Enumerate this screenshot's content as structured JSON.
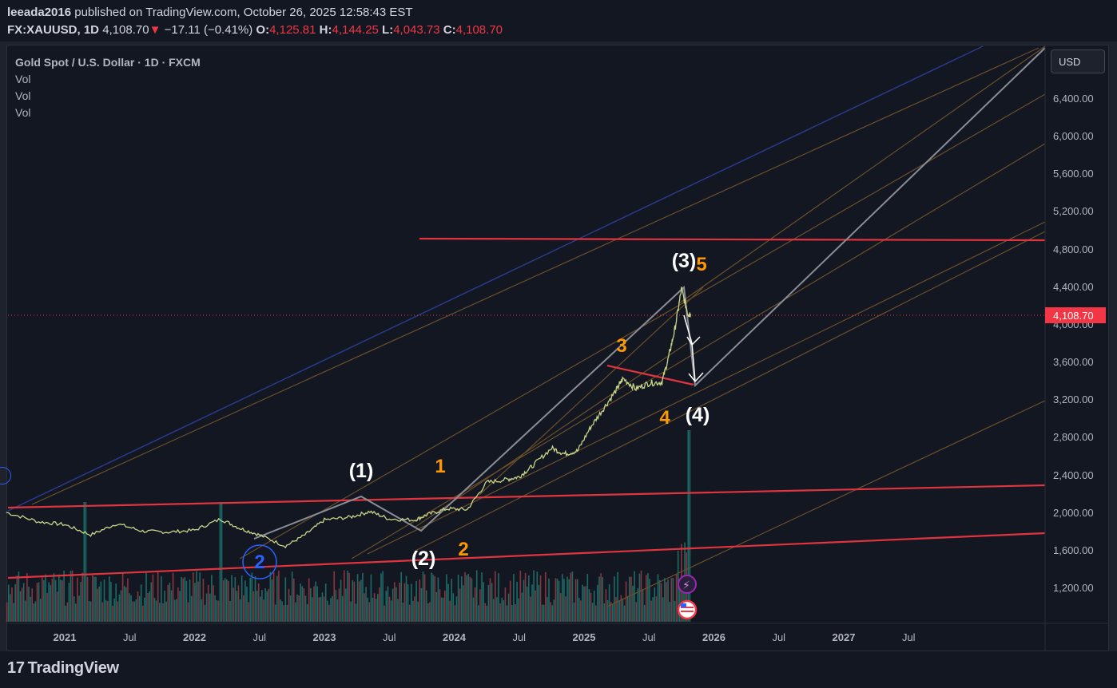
{
  "header": {
    "publisher": "leeada2016",
    "published_text": "published on TradingView.com, October 26, 2025 12:58:43 EST",
    "symbol": "FX:XAUUSD, 1D",
    "last": "4,108.70",
    "change_arrow": "▼",
    "change": "−17.11 (−0.41%)",
    "o_label": "O:",
    "o": "4,125.81",
    "h_label": "H:",
    "h": "4,144.25",
    "l_label": "L:",
    "l": "4,043.73",
    "c_label": "C:",
    "c": "4,108.70"
  },
  "legend": {
    "title": "Gold Spot / U.S. Dollar · 1D · FXCM",
    "vol1": "Vol",
    "vol2": "Vol",
    "vol3": "Vol"
  },
  "price_scale": {
    "currency": "USD",
    "current_price": "4,108.70"
  },
  "footer": {
    "logo_mark": "17",
    "logo_text": "TradingView"
  },
  "colors": {
    "background": "#131722",
    "down": "#f23645",
    "support_line": "#e0343f",
    "fan_line": "#7a5a2e",
    "channel_blue": "#2a3a8a",
    "wave_orange": "#ff9800",
    "wave_white": "#ffffff",
    "volume_up": "#26a69a",
    "volume_down": "#ef5350"
  },
  "chart_data": {
    "type": "line",
    "title": "Gold Spot / U.S. Dollar · 1D · FXCM",
    "xlabel": "",
    "ylabel": "USD",
    "ylim": [
      800,
      6800
    ],
    "x_ticks": [
      "2021",
      "Jul",
      "2022",
      "Jul",
      "2023",
      "Jul",
      "2024",
      "Jul",
      "2025",
      "Jul",
      "2026",
      "Jul",
      "2027",
      "Jul"
    ],
    "y_ticks": [
      "1,200.00",
      "1,600.00",
      "2,000.00",
      "2,400.00",
      "2,800.00",
      "3,200.00",
      "3,600.00",
      "4,000.00",
      "4,400.00",
      "4,800.00",
      "5,200.00",
      "5,600.00",
      "6,000.00",
      "6,400.00"
    ],
    "y_tick_values": [
      1200,
      1600,
      2000,
      2400,
      2800,
      3200,
      3600,
      4000,
      4400,
      4800,
      5200,
      5600,
      6000,
      6400
    ],
    "series": [
      {
        "name": "XAUUSD close",
        "t": [
          2020.55,
          2020.8,
          2021.0,
          2021.2,
          2021.4,
          2021.6,
          2021.8,
          2022.0,
          2022.2,
          2022.35,
          2022.5,
          2022.7,
          2022.85,
          2023.0,
          2023.2,
          2023.35,
          2023.5,
          2023.7,
          2023.8,
          2023.95,
          2024.1,
          2024.25,
          2024.4,
          2024.5,
          2024.6,
          2024.75,
          2024.85,
          2024.95,
          2025.05,
          2025.15,
          2025.25,
          2025.3,
          2025.4,
          2025.5,
          2025.6,
          2025.65,
          2025.7,
          2025.75,
          2025.8,
          2025.82
        ],
        "values": [
          2000,
          1900,
          1870,
          1760,
          1880,
          1800,
          1790,
          1810,
          1930,
          1830,
          1760,
          1640,
          1760,
          1920,
          1950,
          2010,
          1930,
          1920,
          1980,
          2040,
          2030,
          2320,
          2350,
          2380,
          2490,
          2680,
          2620,
          2650,
          2900,
          3100,
          3300,
          3420,
          3310,
          3370,
          3380,
          3640,
          3950,
          4370,
          4110,
          4108.7
        ]
      }
    ],
    "volume": {
      "start": 2020.55,
      "end": 2025.82,
      "spike_at": [
        2021.15,
        2022.2,
        2025.8
      ],
      "max_relative": 1.0
    },
    "wave_labels": [
      {
        "text": "(1)",
        "color": "white"
      },
      {
        "text": "(2)",
        "color": "white"
      },
      {
        "text": "(3)",
        "color": "white"
      },
      {
        "text": "(4)",
        "color": "white"
      },
      {
        "text": "1",
        "color": "orange"
      },
      {
        "text": "2",
        "color": "orange"
      },
      {
        "text": "3",
        "color": "orange"
      },
      {
        "text": "4",
        "color": "orange"
      },
      {
        "text": "5",
        "color": "orange"
      },
      {
        "text": "2",
        "color": "blue-circle"
      }
    ],
    "horizontal_level": 4880
  }
}
